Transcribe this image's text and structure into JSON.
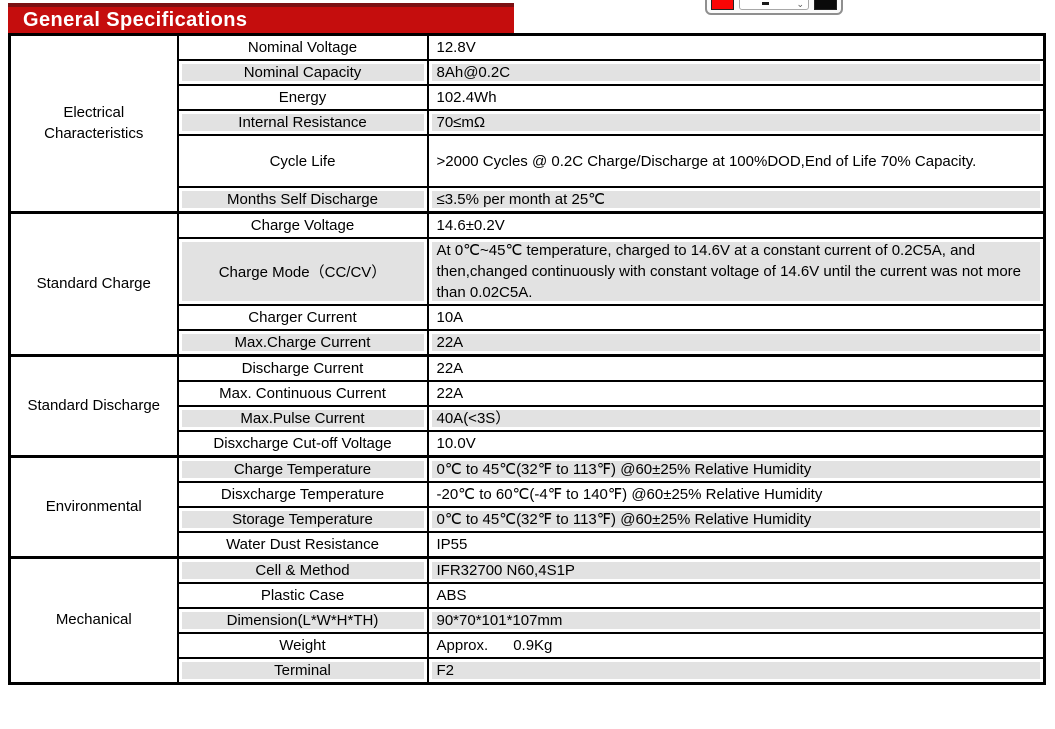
{
  "header": {
    "title": "General Specifications"
  },
  "toolbar": {
    "red_swatch_color": "#fa0505",
    "black_swatch_color": "#0a0a0a"
  },
  "table": {
    "sections": [
      {
        "category": "Electrical Characteristics",
        "rows": [
          {
            "label": "Nominal Voltage",
            "value": "12.8V"
          },
          {
            "label": "Nominal Capacity",
            "value": "8Ah@0.2C"
          },
          {
            "label": "Energy",
            "value": "102.4Wh"
          },
          {
            "label": "Internal Resistance",
            "value": "70≤mΩ"
          },
          {
            "label": "Cycle Life",
            "value": ">2000 Cycles @ 0.2C Charge/Discharge at 100%DOD,End of Life 70% Capacity."
          },
          {
            "label": "Months Self Discharge",
            "value": "≤3.5% per month at 25℃"
          }
        ]
      },
      {
        "category": "Standard Charge",
        "rows": [
          {
            "label": "Charge Voltage",
            "value": "14.6±0.2V"
          },
          {
            "label": "Charge Mode（CC/CV）",
            "value": "At 0℃~45℃ temperature, charged to 14.6V at a constant current of 0.2C5A, and then,changed continuously with constant voltage of 14.6V until the current was not more than 0.02C5A."
          },
          {
            "label": "Charger Current",
            "value": "10A"
          },
          {
            "label": "Max.Charge Current",
            "value": "22A"
          }
        ]
      },
      {
        "category": "Standard Discharge",
        "rows": [
          {
            "label": "Discharge Current",
            "value": "22A"
          },
          {
            "label": "Max. Continuous Current",
            "value": "22A"
          },
          {
            "label": "Max.Pulse Current",
            "value": "40A(<3S）"
          },
          {
            "label": "Disxcharge Cut-off Voltage",
            "value": "10.0V"
          }
        ]
      },
      {
        "category": "Environmental",
        "rows": [
          {
            "label": "Charge Temperature",
            "value": "0℃ to 45℃(32℉ to 113℉) @60±25% Relative Humidity"
          },
          {
            "label": "Disxcharge Temperature",
            "value": "-20℃ to 60℃(-4℉ to 140℉) @60±25% Relative Humidity"
          },
          {
            "label": "Storage Temperature",
            "value": "0℃ to 45℃(32℉ to 113℉) @60±25% Relative Humidity"
          },
          {
            "label": "Water Dust Resistance",
            "value": "IP55"
          }
        ]
      },
      {
        "category": "Mechanical",
        "rows": [
          {
            "label": "Cell & Method",
            "value": "IFR32700 N60,4S1P"
          },
          {
            "label": "Plastic Case",
            "value": "ABS"
          },
          {
            "label": "Dimension(L*W*H*TH)",
            "value": "90*70*101*107mm"
          },
          {
            "label": "Weight",
            "value": "Approx.      0.9Kg"
          },
          {
            "label": "Terminal",
            "value": "F2"
          }
        ]
      }
    ]
  }
}
